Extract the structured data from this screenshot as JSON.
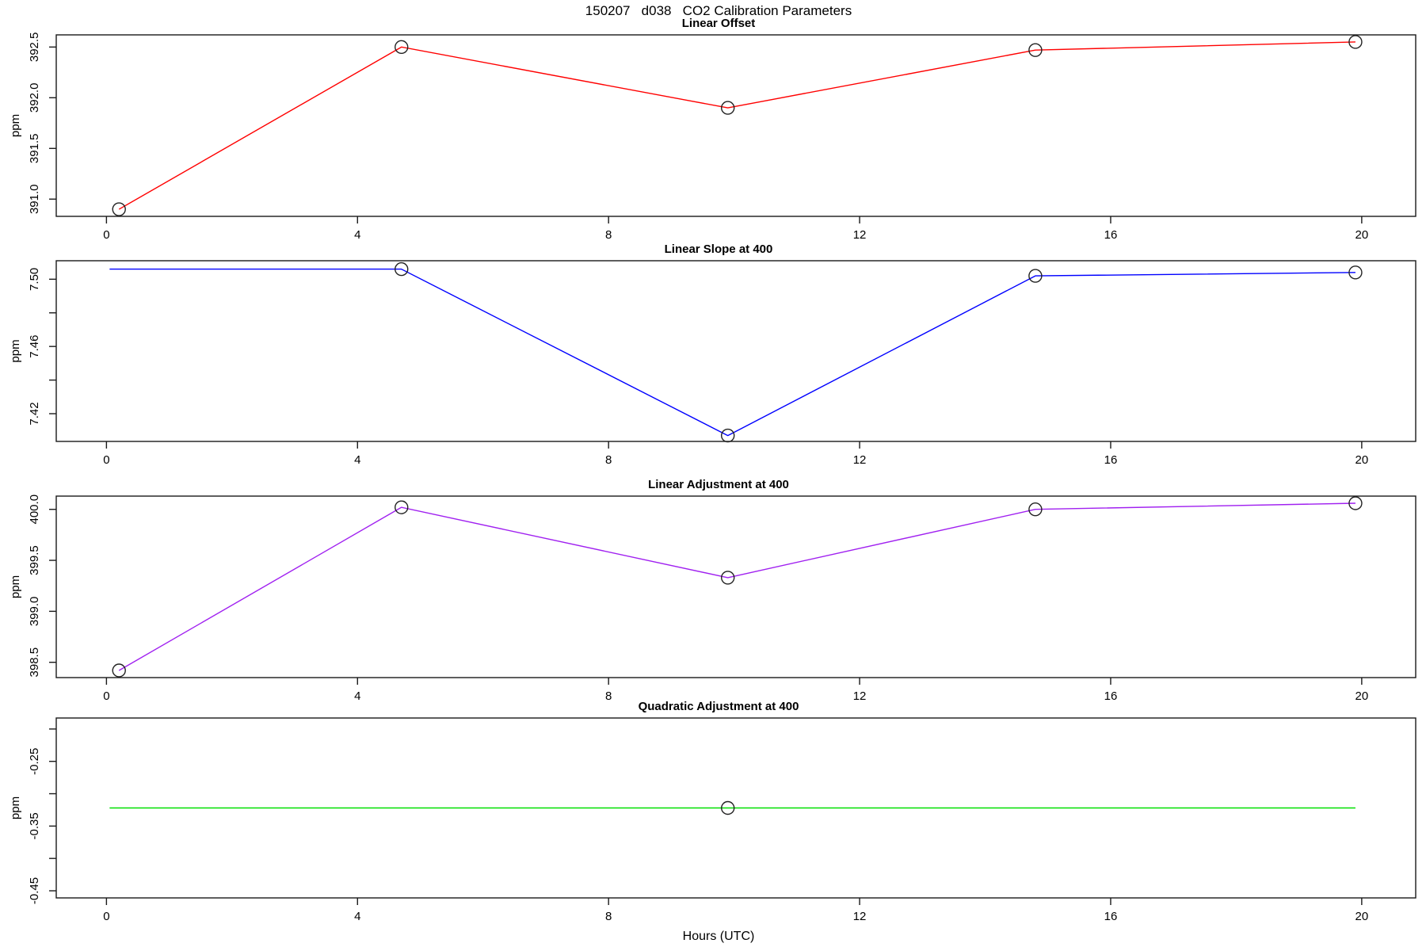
{
  "chart_data": {
    "type": "line",
    "title": "150207   d038   CO2 Calibration Parameters",
    "xlabel": "Hours (UTC)",
    "x_ticks": [
      0,
      4,
      8,
      12,
      16,
      20
    ],
    "x_tick_labels": [
      "0",
      "4",
      "8",
      "12",
      "16",
      "20"
    ],
    "xlim": [
      -0.8,
      20.86
    ],
    "grid": false,
    "legend": "none",
    "panels": [
      {
        "title": "Linear Offset",
        "ylabel": "ppm",
        "color": "#ff0000",
        "ylim": [
          390.83,
          392.62
        ],
        "yticks": [
          391.0,
          391.5,
          392.0,
          392.5
        ],
        "ytick_labels": [
          "391.0",
          "391.5",
          "392.0",
          "392.5"
        ],
        "x": [
          0.2,
          4.7,
          9.9,
          14.8,
          19.9
        ],
        "y": [
          390.9,
          392.5,
          391.9,
          392.47,
          392.55
        ],
        "markers": [
          true,
          true,
          true,
          true,
          true
        ]
      },
      {
        "title": "Linear Slope at 400",
        "ylabel": "ppm",
        "color": "#0000ff",
        "ylim": [
          7.4035,
          7.511
        ],
        "yticks": [
          7.42,
          7.44,
          7.46,
          7.48,
          7.5
        ],
        "ytick_labels": [
          "7.42",
          "",
          "7.46",
          "",
          "7.50"
        ],
        "x": [
          0.05,
          4.7,
          9.9,
          14.8,
          19.9
        ],
        "y": [
          7.506,
          7.506,
          7.407,
          7.502,
          7.504
        ],
        "markers": [
          false,
          true,
          true,
          true,
          true
        ]
      },
      {
        "title": "Linear Adjustment at 400",
        "ylabel": "ppm",
        "color": "#a020f0",
        "ylim": [
          398.35,
          400.13
        ],
        "yticks": [
          398.5,
          399.0,
          399.5,
          400.0
        ],
        "ytick_labels": [
          "398.5",
          "399.0",
          "399.5",
          "400.0"
        ],
        "x": [
          0.2,
          4.7,
          9.9,
          14.8,
          19.9
        ],
        "y": [
          398.42,
          400.02,
          399.33,
          400.0,
          400.06
        ],
        "markers": [
          true,
          true,
          true,
          true,
          true
        ]
      },
      {
        "title": "Quadratic Adjustment at 400",
        "ylabel": "ppm",
        "color": "#00e000",
        "ylim": [
          -0.461,
          -0.183
        ],
        "yticks": [
          -0.45,
          -0.4,
          -0.35,
          -0.3,
          -0.25,
          -0.2
        ],
        "ytick_labels": [
          "-0.45",
          "",
          "-0.35",
          "",
          "-0.25",
          ""
        ],
        "x": [
          0.05,
          4.7,
          9.9,
          14.8,
          19.9
        ],
        "y": [
          -0.322,
          -0.322,
          -0.322,
          -0.322,
          -0.322
        ],
        "markers": [
          false,
          false,
          true,
          false,
          false
        ]
      }
    ]
  }
}
